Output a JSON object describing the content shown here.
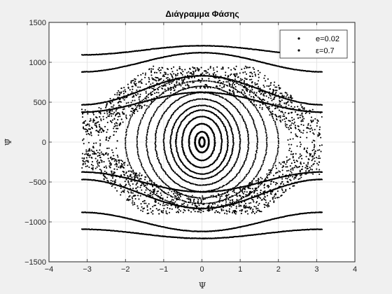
{
  "chart_data": {
    "type": "scatter",
    "title": "Διάγραμμα Φάσης",
    "xlabel": "Ψ",
    "ylabel": "Ψ̇",
    "xlim": [
      -4,
      4
    ],
    "ylim": [
      -1500,
      1500
    ],
    "xticks": [
      -4,
      -3,
      -2,
      -1,
      0,
      1,
      2,
      3,
      4
    ],
    "yticks": [
      -1500,
      -1000,
      -500,
      0,
      500,
      1000,
      1500
    ],
    "xtick_labels": [
      "−4",
      "−3",
      "−2",
      "−1",
      "0",
      "1",
      "2",
      "3",
      "4"
    ],
    "ytick_labels": [
      "−1500",
      "−1000",
      "−500",
      "0",
      "500",
      "1000",
      "1500"
    ],
    "grid": true,
    "legend_position": "top-right",
    "legend": [
      "e=0.02",
      "ε=0.7"
    ],
    "series": [
      {
        "name": "e=0.02",
        "color": "#000000",
        "components": {
          "closed_orbit_amplitudes": [
            [
              0.07,
              60
            ],
            [
              0.18,
              130
            ],
            [
              0.34,
              230
            ],
            [
              0.52,
              320
            ],
            [
              0.68,
              400
            ],
            [
              0.82,
              460
            ],
            [
              1.0,
              540
            ],
            [
              1.22,
              620
            ],
            [
              1.45,
              700
            ],
            [
              1.7,
              770
            ],
            [
              2.0,
              830
            ]
          ],
          "chaotic_band": {
            "x_range": [
              -3.14,
              3.14
            ],
            "y_range": [
              -900,
              950
            ],
            "approx_points": 2200
          },
          "rotational_orbits": [
            [
              1150,
              0.05
            ],
            [
              1000,
              0.12
            ],
            [
              650,
              0.28
            ],
            [
              500,
              0.25
            ]
          ]
        }
      }
    ]
  }
}
